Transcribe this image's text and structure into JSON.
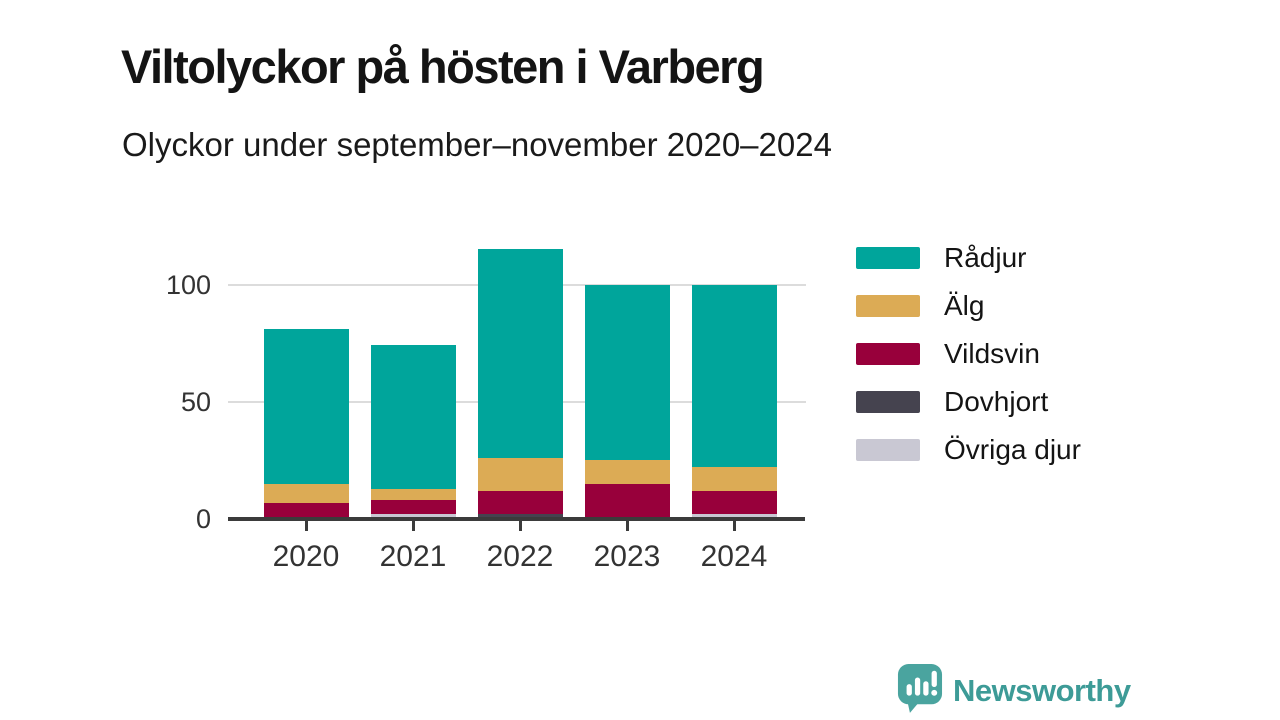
{
  "header": {
    "title": "Viltolyckor på hösten i Varberg",
    "subtitle": "Olyckor under september–november 2020–2024"
  },
  "chart_data": {
    "type": "bar",
    "stacked": true,
    "title": "Viltolyckor på hösten i Varberg",
    "subtitle": "Olyckor under september–november 2020–2024",
    "categories": [
      "2020",
      "2021",
      "2022",
      "2023",
      "2024"
    ],
    "series": [
      {
        "name": "Rådjur",
        "color": "#00a59b",
        "values": [
          66,
          61,
          89,
          75,
          78
        ]
      },
      {
        "name": "Älg",
        "color": "#dcab55",
        "values": [
          8,
          5,
          14,
          10,
          10
        ]
      },
      {
        "name": "Vildsvin",
        "color": "#98003b",
        "values": [
          7,
          6,
          10,
          15,
          10
        ]
      },
      {
        "name": "Dovhjort",
        "color": "#45434f",
        "values": [
          0,
          0,
          2,
          0,
          0
        ]
      },
      {
        "name": "Övriga djur",
        "color": "#c9c8d3",
        "values": [
          0,
          2,
          0,
          0,
          2
        ]
      }
    ],
    "totals": [
      81,
      74,
      115,
      100,
      100
    ],
    "stack_order_bottom_to_top": [
      "Övriga djur",
      "Dovhjort",
      "Vildsvin",
      "Älg",
      "Rådjur"
    ],
    "yticks": [
      0,
      50,
      100
    ],
    "ylim": [
      0,
      118
    ],
    "xlabel": "",
    "ylabel": "",
    "grid": "horizontal",
    "legend_position": "right"
  },
  "footer": {
    "brand": "Newsworthy"
  },
  "colors": {
    "axis": "#3b3b3b",
    "gridline": "#dcdcdc",
    "title_text": "#141414",
    "tick_text": "#333333",
    "brand_teal": "#3d9b97",
    "logo_mark": "#4aa49f"
  }
}
